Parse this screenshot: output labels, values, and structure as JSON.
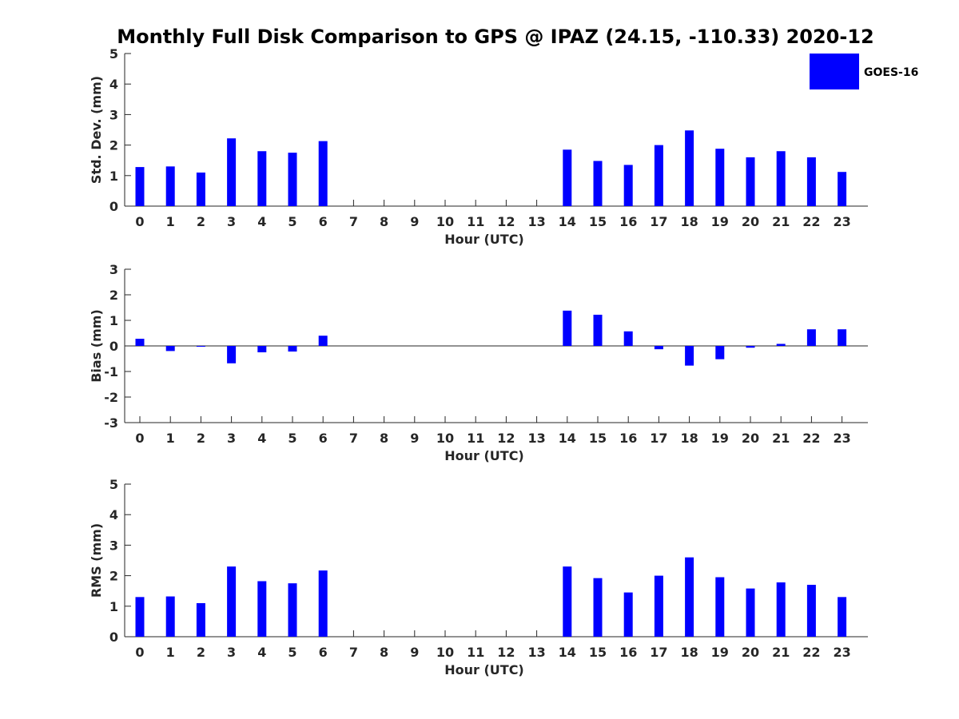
{
  "title": "Monthly Full Disk Comparison to GPS @ IPAZ (24.15, -110.33) 2020-12",
  "bar_color": "#0000ff",
  "legend": {
    "label": "GOES-16",
    "placement": "top-right"
  },
  "chart_data": [
    {
      "type": "bar",
      "series_name": "GOES-16",
      "ylabel": "Std. Dev. (mm)",
      "xlabel": "Hour (UTC)",
      "ylim": [
        0,
        5
      ],
      "yticks": [
        "0",
        "1",
        "2",
        "3",
        "4",
        "5"
      ],
      "categories": [
        "0",
        "1",
        "2",
        "3",
        "4",
        "5",
        "6",
        "7",
        "8",
        "9",
        "10",
        "11",
        "12",
        "13",
        "14",
        "15",
        "16",
        "17",
        "18",
        "19",
        "20",
        "21",
        "22",
        "23"
      ],
      "values": [
        1.28,
        1.3,
        1.1,
        2.22,
        1.8,
        1.75,
        2.13,
        null,
        null,
        null,
        null,
        null,
        null,
        null,
        1.85,
        1.48,
        1.35,
        2.0,
        2.48,
        1.88,
        1.6,
        1.8,
        1.6,
        1.12
      ]
    },
    {
      "type": "bar",
      "series_name": "GOES-16",
      "ylabel": "Bias (mm)",
      "xlabel": "Hour (UTC)",
      "ylim": [
        -3,
        3
      ],
      "yticks": [
        "-3",
        "-2",
        "-1",
        "0",
        "1",
        "2",
        "3"
      ],
      "categories": [
        "0",
        "1",
        "2",
        "3",
        "4",
        "5",
        "6",
        "7",
        "8",
        "9",
        "10",
        "11",
        "12",
        "13",
        "14",
        "15",
        "16",
        "17",
        "18",
        "19",
        "20",
        "21",
        "22",
        "23"
      ],
      "values": [
        0.28,
        -0.2,
        -0.02,
        -0.68,
        -0.25,
        -0.22,
        0.4,
        null,
        null,
        null,
        null,
        null,
        null,
        null,
        1.38,
        1.22,
        0.57,
        -0.13,
        -0.77,
        -0.52,
        -0.07,
        0.08,
        0.65,
        0.65
      ]
    },
    {
      "type": "bar",
      "series_name": "GOES-16",
      "ylabel": "RMS (mm)",
      "xlabel": "Hour (UTC)",
      "ylim": [
        0,
        5
      ],
      "yticks": [
        "0",
        "1",
        "2",
        "3",
        "4",
        "5"
      ],
      "categories": [
        "0",
        "1",
        "2",
        "3",
        "4",
        "5",
        "6",
        "7",
        "8",
        "9",
        "10",
        "11",
        "12",
        "13",
        "14",
        "15",
        "16",
        "17",
        "18",
        "19",
        "20",
        "21",
        "22",
        "23"
      ],
      "values": [
        1.3,
        1.32,
        1.1,
        2.3,
        1.82,
        1.75,
        2.17,
        null,
        null,
        null,
        null,
        null,
        null,
        null,
        2.3,
        1.92,
        1.45,
        2.0,
        2.6,
        1.95,
        1.58,
        1.78,
        1.7,
        1.3
      ]
    }
  ]
}
